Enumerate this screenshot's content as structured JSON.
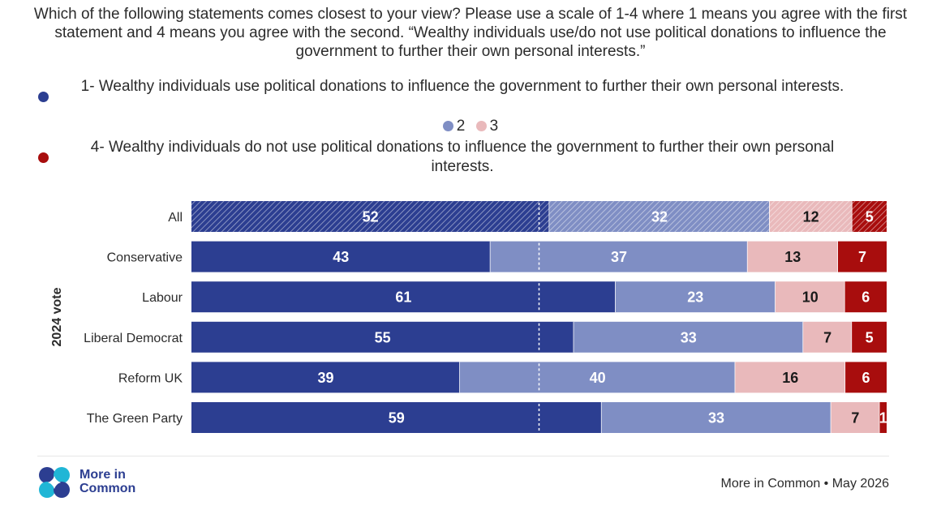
{
  "title": "Which of the following statements comes closest to your view? Please use a scale of 1-4 where 1 means you agree with the first statement and 4 means you agree with the second. “Wealthy individuals use/do not use political donations to influence the government to further their own personal interests.”",
  "legend": {
    "item1": "1- Wealthy individuals use political donations to influence the government to further their own personal interests.",
    "item2": "2",
    "item3": "3",
    "item4": "4- Wealthy individuals do not use political donations to influence the government to further their own personal interests."
  },
  "colors": {
    "s1": "#2c3e91",
    "s2": "#7f8ec4",
    "s3": "#e9b9bb",
    "s4": "#a80d0d",
    "s1_text": "#ffffff",
    "s2_text": "#ffffff",
    "s3_text": "#1a1a1a",
    "s4_text": "#ffffff"
  },
  "chart_data": {
    "type": "bar",
    "orientation": "horizontal",
    "stacked": true,
    "yaxis_title": "2024 vote",
    "categories": [
      "All",
      "Conservative",
      "Labour",
      "Liberal Democrat",
      "Reform UK",
      "The Green Party"
    ],
    "series": [
      {
        "name": "1- Wealthy individuals use political donations to influence the government to further their own personal interests.",
        "values": [
          52,
          43,
          61,
          55,
          39,
          59
        ]
      },
      {
        "name": "2",
        "values": [
          32,
          37,
          23,
          33,
          40,
          33
        ]
      },
      {
        "name": "3",
        "values": [
          12,
          13,
          10,
          7,
          16,
          7
        ]
      },
      {
        "name": "4- Wealthy individuals do not use political donations to influence the government to further their own personal interests.",
        "values": [
          5,
          7,
          6,
          5,
          6,
          1
        ]
      }
    ],
    "hatched_categories": [
      "All"
    ],
    "reference_line": 50,
    "legend_position": "top"
  },
  "footer": {
    "brand_line1": "More in",
    "brand_line2": "Common",
    "source": "More in Common • May 2026"
  }
}
